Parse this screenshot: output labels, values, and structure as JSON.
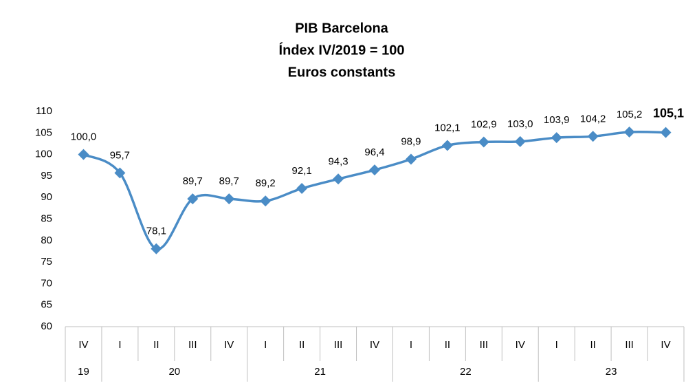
{
  "chart_data": {
    "type": "line",
    "title": "PIB Barcelona",
    "subtitle": [
      "Índex IV/2019 = 100",
      "Euros constants"
    ],
    "categories": [
      "IV",
      "I",
      "II",
      "III",
      "IV",
      "I",
      "II",
      "III",
      "IV",
      "I",
      "II",
      "III",
      "IV",
      "I",
      "II",
      "III",
      "IV"
    ],
    "category_groups": [
      "19",
      "20",
      "20",
      "20",
      "20",
      "21",
      "21",
      "21",
      "21",
      "22",
      "22",
      "22",
      "22",
      "23",
      "23",
      "23",
      "23"
    ],
    "series": [
      {
        "color": "#4a8cc6",
        "values": [
          100.0,
          95.7,
          78.1,
          89.7,
          89.7,
          89.2,
          92.1,
          94.3,
          96.4,
          98.9,
          102.1,
          102.9,
          103.0,
          103.9,
          104.2,
          105.2,
          105.1
        ],
        "value_labels": [
          "100,0",
          "95,7",
          "78,1",
          "89,7",
          "89,7",
          "89,2",
          "92,1",
          "94,3",
          "96,4",
          "98,9",
          "102,1",
          "102,9",
          "103,0",
          "103,9",
          "104,2",
          "105,2",
          "105,1"
        ]
      }
    ],
    "ylim": [
      60,
      110
    ],
    "yticks": [
      60,
      65,
      70,
      75,
      80,
      85,
      90,
      95,
      100,
      105,
      110
    ],
    "grid": false
  }
}
